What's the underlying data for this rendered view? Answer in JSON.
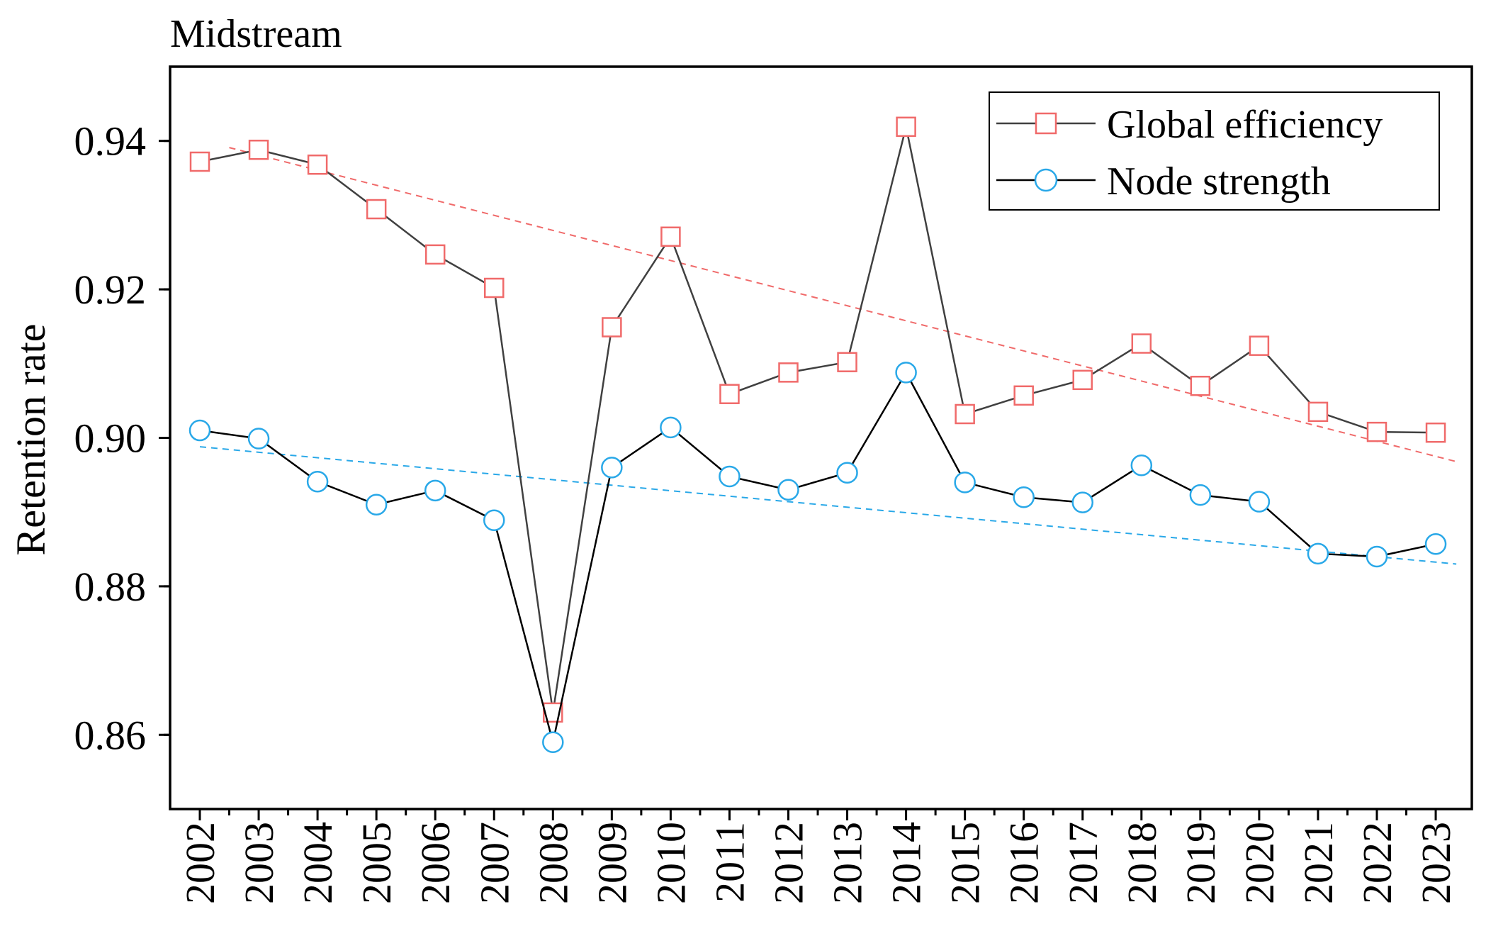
{
  "chart_data": {
    "type": "line",
    "title": "Midstream",
    "xlabel": "",
    "ylabel": "Retention rate",
    "categories": [
      "2002",
      "2003",
      "2004",
      "2005",
      "2006",
      "2007",
      "2008",
      "2009",
      "2010",
      "2011",
      "2012",
      "2013",
      "2014",
      "2015",
      "2016",
      "2017",
      "2018",
      "2019",
      "2020",
      "2021",
      "2022",
      "2023"
    ],
    "ylim": [
      0.85,
      0.95
    ],
    "yticks": [
      "0.86",
      "0.88",
      "0.90",
      "0.92",
      "0.94"
    ],
    "grid": false,
    "legend_position": "top-right",
    "series": [
      {
        "name": "Global efficiency",
        "marker": "square",
        "line_color": "#404040",
        "marker_color": "#f06a6a",
        "values": [
          0.9372,
          0.9388,
          0.9368,
          0.9308,
          0.9247,
          0.9202,
          0.863,
          0.9149,
          0.9271,
          0.9059,
          0.9088,
          0.9102,
          0.9419,
          0.9032,
          0.9057,
          0.9078,
          0.9127,
          0.907,
          0.9124,
          0.9035,
          0.9008,
          0.9007
        ],
        "trend": {
          "color": "#f06a6a",
          "from": [
            0.5,
            0.9391
          ],
          "to": [
            21.35,
            0.8968
          ]
        }
      },
      {
        "name": "Node strength",
        "marker": "circle",
        "line_color": "#000000",
        "marker_color": "#29a8e8",
        "values": [
          0.901,
          0.8999,
          0.8941,
          0.891,
          0.8929,
          0.8889,
          0.859,
          0.896,
          0.9014,
          0.8948,
          0.893,
          0.8953,
          0.9088,
          0.894,
          0.892,
          0.8913,
          0.8963,
          0.8923,
          0.8914,
          0.8844,
          0.884,
          0.8857
        ],
        "trend": {
          "color": "#29a8e8",
          "from": [
            0.0,
            0.8988
          ],
          "to": [
            21.35,
            0.883
          ]
        }
      }
    ]
  }
}
